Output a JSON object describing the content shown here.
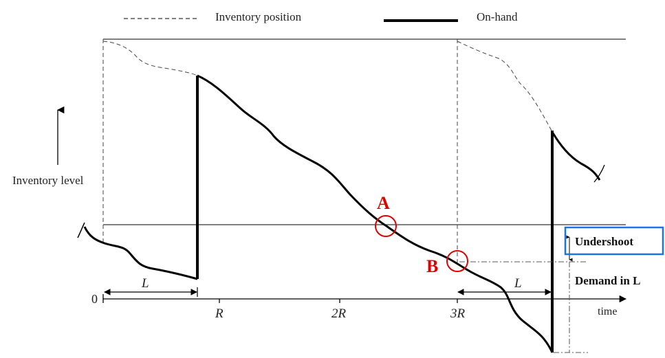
{
  "legend": {
    "inventory_position": "Inventory position",
    "on_hand": "On-hand"
  },
  "axis": {
    "y_label": "Inventory level",
    "zero": "0",
    "x_label": "time",
    "ticks": [
      "R",
      "2R",
      "3R"
    ]
  },
  "lead_time": {
    "first": "L",
    "second": "L"
  },
  "markers": {
    "a": "A",
    "b": "B"
  },
  "annotations": {
    "undershoot": "Undershoot",
    "demand_in_l": "Demand in L"
  },
  "colors": {
    "marker": "#e00000",
    "highlight_box": "#1a73e8",
    "line": "#000000"
  }
}
